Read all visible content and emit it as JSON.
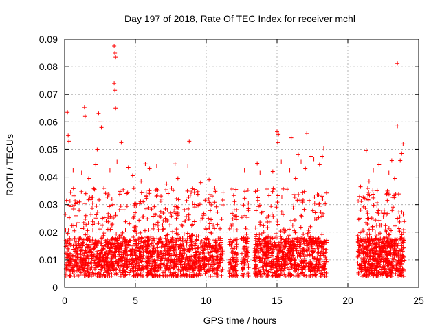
{
  "chart_data": {
    "type": "scatter",
    "title": "Day 197 of 2018, Rate Of TEC Index for receiver mchl",
    "xlabel": "GPS time / hours",
    "ylabel": "ROTI / TECUs",
    "xlim": [
      0,
      25
    ],
    "ylim": [
      0,
      0.09
    ],
    "xticks": [
      0,
      5,
      10,
      15,
      20,
      25
    ],
    "xtick_labels": [
      "0",
      "5",
      "10",
      "15",
      "20",
      "25"
    ],
    "yticks": [
      0,
      0.01,
      0.02,
      0.03,
      0.04,
      0.05,
      0.06,
      0.07,
      0.08,
      0.09
    ],
    "ytick_labels": [
      "0",
      "0.01",
      "0.02",
      "0.03",
      "0.04",
      "0.05",
      "0.06",
      "0.07",
      "0.08",
      "0.09"
    ],
    "grid": true,
    "marker": "plus",
    "marker_color": "#ff0000",
    "series": [
      {
        "values_xy": [
          [
            3.5,
            0.0875
          ],
          [
            3.55,
            0.085
          ],
          [
            3.6,
            0.0835
          ],
          [
            23.5,
            0.0812
          ],
          [
            3.5,
            0.074
          ],
          [
            3.55,
            0.0715
          ],
          [
            3.6,
            0.065
          ],
          [
            1.4,
            0.0653
          ],
          [
            1.45,
            0.062
          ],
          [
            2.4,
            0.063
          ],
          [
            2.5,
            0.06
          ],
          [
            2.6,
            0.058
          ],
          [
            0.2,
            0.0635
          ],
          [
            0.25,
            0.055
          ],
          [
            0.3,
            0.053
          ],
          [
            23.5,
            0.0585
          ],
          [
            15.0,
            0.0565
          ],
          [
            15.1,
            0.0555
          ],
          [
            15.05,
            0.0525
          ],
          [
            17.1,
            0.0558
          ],
          [
            16.0,
            0.0542
          ],
          [
            4.0,
            0.0525
          ],
          [
            8.8,
            0.053
          ],
          [
            2.3,
            0.05
          ],
          [
            2.5,
            0.0505
          ],
          [
            21.3,
            0.0497
          ],
          [
            23.9,
            0.052
          ],
          [
            23.8,
            0.0485
          ],
          [
            23.7,
            0.046
          ],
          [
            17.4,
            0.0475
          ],
          [
            18.3,
            0.0505
          ],
          [
            18.2,
            0.0475
          ],
          [
            16.5,
            0.0482
          ],
          [
            3.7,
            0.0455
          ],
          [
            4.5,
            0.0435
          ],
          [
            5.7,
            0.0448
          ],
          [
            6.5,
            0.044
          ],
          [
            7.8,
            0.0448
          ],
          [
            8.7,
            0.044
          ],
          [
            12.7,
            0.0425
          ],
          [
            13.6,
            0.045
          ],
          [
            15.3,
            0.0455
          ],
          [
            16.7,
            0.0455
          ],
          [
            17.6,
            0.0465
          ],
          [
            22.2,
            0.0445
          ],
          [
            23.1,
            0.046
          ],
          [
            0.6,
            0.0425
          ],
          [
            1.2,
            0.0415
          ],
          [
            2.2,
            0.0445
          ],
          [
            3.2,
            0.0425
          ],
          [
            6.0,
            0.043
          ],
          [
            8.0,
            0.0395
          ],
          [
            9.6,
            0.038
          ],
          [
            10.2,
            0.039
          ],
          [
            13.8,
            0.0415
          ],
          [
            14.7,
            0.042
          ],
          [
            15.9,
            0.0425
          ],
          [
            17.0,
            0.043
          ],
          [
            18.0,
            0.0445
          ],
          [
            20.9,
            0.0365
          ],
          [
            21.8,
            0.0425
          ],
          [
            22.9,
            0.0415
          ],
          [
            1.7,
            0.0395
          ],
          [
            4.8,
            0.0405
          ],
          [
            5.4,
            0.0385
          ],
          [
            7.2,
            0.0375
          ],
          [
            9.2,
            0.0355
          ],
          [
            10.6,
            0.036
          ],
          [
            12.1,
            0.0355
          ],
          [
            16.3,
            0.0395
          ],
          [
            21.5,
            0.0385
          ],
          [
            23.3,
            0.0395
          ]
        ]
      }
    ]
  }
}
